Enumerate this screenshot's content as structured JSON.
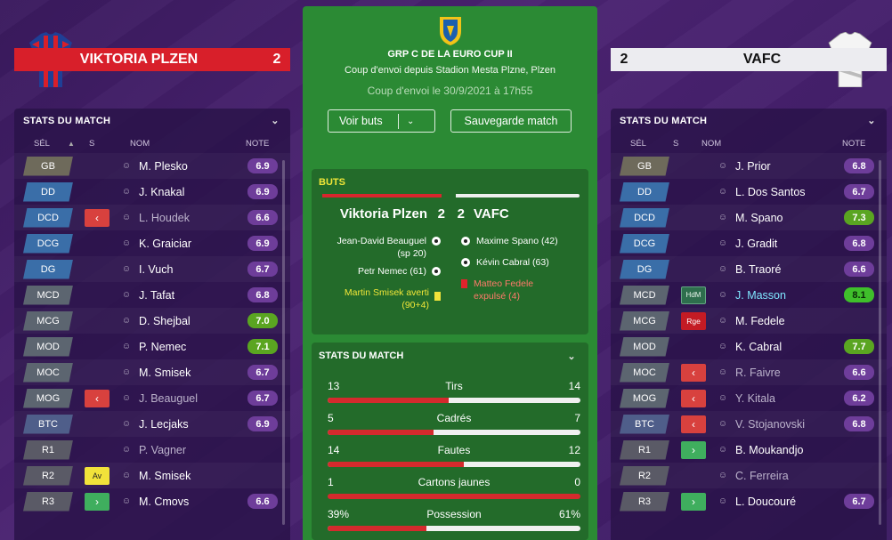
{
  "competition": {
    "name": "GRP C DE LA EURO CUP II",
    "venue": "Coup d'envoi depuis Stadion Mesta Plzne, Plzen",
    "kickoff": "Coup d'envoi le 30/9/2021 à 17h55",
    "view_goals_label": "Voir buts",
    "save_label": "Sauvegarde match"
  },
  "home": {
    "name": "VIKTORIA PLZEN",
    "score": "2",
    "panel_title": "STATS DU MATCH",
    "columns": {
      "sel": "SÉL",
      "s": "S",
      "nom": "NOM",
      "note": "NOTE"
    },
    "players": [
      {
        "pos": "GB",
        "name": "M. Plesko",
        "rating": "6.9"
      },
      {
        "pos": "DD",
        "name": "J. Knakal",
        "rating": "6.9"
      },
      {
        "pos": "DCD",
        "name": "L. Houdek",
        "rating": "6.6",
        "badge": "out"
      },
      {
        "pos": "DCG",
        "name": "K. Graiciar",
        "rating": "6.9"
      },
      {
        "pos": "DG",
        "name": "I. Vuch",
        "rating": "6.7"
      },
      {
        "pos": "MCD",
        "name": "J. Tafat",
        "rating": "6.8"
      },
      {
        "pos": "MCG",
        "name": "D. Shejbal",
        "rating": "7.0"
      },
      {
        "pos": "MOD",
        "name": "P. Nemec",
        "rating": "7.1"
      },
      {
        "pos": "MOC",
        "name": "M. Smisek",
        "rating": "6.7"
      },
      {
        "pos": "MOG",
        "name": "J. Beauguel",
        "rating": "6.7",
        "badge": "out"
      },
      {
        "pos": "BTC",
        "name": "J. Lecjaks",
        "rating": "6.9"
      },
      {
        "pos": "R1",
        "name": "P. Vagner",
        "rating": ""
      },
      {
        "pos": "R2",
        "name": "M. Smisek",
        "rating": "",
        "badge": "yc",
        "badge_text": "Av"
      },
      {
        "pos": "R3",
        "name": "M. Cmovs",
        "rating": "6.6",
        "badge": "in"
      }
    ]
  },
  "away": {
    "name": "VAFC",
    "score": "2",
    "panel_title": "STATS DU MATCH",
    "columns": {
      "sel": "SÉL",
      "s": "S",
      "nom": "NOM",
      "note": "NOTE"
    },
    "players": [
      {
        "pos": "GB",
        "name": "J. Prior",
        "rating": "6.8"
      },
      {
        "pos": "DD",
        "name": "L. Dos Santos",
        "rating": "6.7"
      },
      {
        "pos": "DCD",
        "name": "M. Spano",
        "rating": "7.3"
      },
      {
        "pos": "DCG",
        "name": "J. Gradit",
        "rating": "6.8"
      },
      {
        "pos": "DG",
        "name": "B. Traoré",
        "rating": "6.6"
      },
      {
        "pos": "MCD",
        "name": "J. Masson",
        "rating": "8.1",
        "badge": "hdm",
        "badge_text": "HdM"
      },
      {
        "pos": "MCG",
        "name": "M. Fedele",
        "rating": "",
        "badge": "rge",
        "badge_text": "Rge"
      },
      {
        "pos": "MOD",
        "name": "K. Cabral",
        "rating": "7.7"
      },
      {
        "pos": "MOC",
        "name": "R. Faivre",
        "rating": "6.6",
        "badge": "out"
      },
      {
        "pos": "MOG",
        "name": "Y. Kitala",
        "rating": "6.2",
        "badge": "out"
      },
      {
        "pos": "BTC",
        "name": "V. Stojanovski",
        "rating": "6.8",
        "badge": "out"
      },
      {
        "pos": "R1",
        "name": "B. Moukandjo",
        "rating": "",
        "badge": "in"
      },
      {
        "pos": "R2",
        "name": "C. Ferreira",
        "rating": ""
      },
      {
        "pos": "R3",
        "name": "L. Doucouré",
        "rating": "6.7",
        "badge": "in"
      }
    ]
  },
  "goals_card": {
    "title": "BUTS",
    "home_team": "Viktoria Plzen",
    "home_score": "2",
    "away_score": "2",
    "away_team": "VAFC",
    "home_events": [
      {
        "text": "Jean-David Beauguel",
        "text2": "(sp 20)",
        "type": "goal"
      },
      {
        "text": "Petr Nemec (61)",
        "type": "goal"
      },
      {
        "text": "Martin Smisek averti",
        "text2": "(90+4)",
        "type": "yellow"
      }
    ],
    "away_events": [
      {
        "text": "Maxime Spano (42)",
        "type": "goal"
      },
      {
        "text": "Kévin Cabral (63)",
        "type": "goal"
      },
      {
        "text": "Matteo Fedele",
        "text2": "expulsé (4)",
        "type": "red"
      }
    ]
  },
  "stats_card": {
    "title": "STATS DU MATCH",
    "stats": [
      {
        "label": "Tirs",
        "home": "13",
        "away": "14",
        "home_share": 0.48
      },
      {
        "label": "Cadrés",
        "home": "5",
        "away": "7",
        "home_share": 0.42
      },
      {
        "label": "Fautes",
        "home": "14",
        "away": "12",
        "home_share": 0.54
      },
      {
        "label": "Cartons jaunes",
        "home": "1",
        "away": "0",
        "home_share": 1.0
      },
      {
        "label": "Possession",
        "home": "39%",
        "away": "61%",
        "home_share": 0.39
      }
    ]
  }
}
